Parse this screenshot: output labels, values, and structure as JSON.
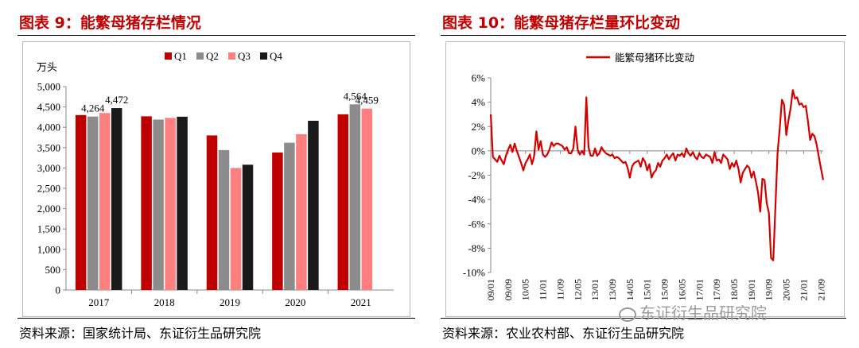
{
  "fig9": {
    "title": "图表 9：能繁母猪存栏情况",
    "source": "资料来源：国家统计局、东证衍生品研究院"
  },
  "fig10": {
    "title": "图表 10：能繁母猪存栏量环比变动",
    "source": "资料来源：农业农村部、东证衍生品研究院"
  },
  "watermark": "东证衍生品研究院",
  "chart_data": [
    {
      "type": "bar",
      "ylabel": "万头",
      "ylim": [
        0,
        5000
      ],
      "yticks": [
        0,
        500,
        1000,
        1500,
        2000,
        2500,
        3000,
        3500,
        4000,
        4500,
        5000
      ],
      "ytick_labels": [
        "0",
        "500",
        "1,000",
        "1,500",
        "2,000",
        "2,500",
        "3,000",
        "3,500",
        "4,000",
        "4,500",
        "5,000"
      ],
      "categories": [
        "2017",
        "2018",
        "2019",
        "2020",
        "2021"
      ],
      "legend_position": "top",
      "series": [
        {
          "name": "Q1",
          "color": "#c00000",
          "values": [
            4300,
            4270,
            3800,
            3380,
            4320
          ]
        },
        {
          "name": "Q2",
          "color": "#8c8c8c",
          "values": [
            4264,
            4190,
            3440,
            3620,
            4564
          ]
        },
        {
          "name": "Q3",
          "color": "#ff7f7f",
          "values": [
            4350,
            4230,
            3000,
            3830,
            4459
          ]
        },
        {
          "name": "Q4",
          "color": "#1a1a1a",
          "values": [
            4472,
            4260,
            3080,
            4160,
            null
          ]
        }
      ],
      "data_labels": [
        {
          "series": 1,
          "category": 0,
          "text": "4,264"
        },
        {
          "series": 3,
          "category": 0,
          "text": "4,472"
        },
        {
          "series": 1,
          "category": 4,
          "text": "4,564"
        },
        {
          "series": 2,
          "category": 4,
          "text": "4,459"
        }
      ],
      "grid": false
    },
    {
      "type": "line",
      "series": [
        {
          "name": "能繁母猪环比变动",
          "color": "#d40000"
        }
      ],
      "legend_position": "top",
      "ylim": [
        -10,
        6
      ],
      "yticks": [
        -10,
        -8,
        -6,
        -4,
        -2,
        0,
        2,
        4,
        6
      ],
      "ytick_labels": [
        "-10%",
        "-8%",
        "-6%",
        "-4%",
        "-2%",
        "0%",
        "2%",
        "4%",
        "6%"
      ],
      "xtick_labels": [
        "09/01",
        "09/09",
        "10/05",
        "11/01",
        "11/09",
        "12/05",
        "13/01",
        "13/09",
        "14/05",
        "15/01",
        "15/09",
        "16/05",
        "17/01",
        "17/09",
        "18/05",
        "19/01",
        "19/09",
        "20/05",
        "21/01",
        "21/09"
      ],
      "x_start": "2009-01",
      "x_end": "2021-10",
      "values": [
        3.0,
        -0.5,
        -0.7,
        -0.9,
        -0.4,
        -0.8,
        -1.1,
        -0.4,
        0.1,
        0.5,
        -0.1,
        0.6,
        0.0,
        -0.5,
        -1.0,
        -1.6,
        -1.0,
        -0.7,
        -0.3,
        -1.1,
        -0.4,
        1.6,
        0.1,
        0.8,
        -0.3,
        -0.5,
        -0.3,
        0.1,
        0.7,
        0.4,
        0.6,
        0.6,
        0.5,
        0.4,
        0.1,
        0.3,
        -0.2,
        -0.2,
        0.2,
        2.0,
        0.1,
        -0.3,
        0.0,
        -0.3,
        4.4,
        0.3,
        -0.4,
        -0.4,
        0.2,
        -0.4,
        -0.2,
        0.3,
        0.0,
        -0.2,
        -0.3,
        -0.4,
        -0.3,
        -0.6,
        -0.5,
        -0.6,
        -0.8,
        -1.0,
        -0.9,
        -1.4,
        -2.2,
        -1.3,
        -1.0,
        -0.9,
        -0.8,
        -1.3,
        -0.6,
        -0.9,
        -1.6,
        -1.1,
        -2.2,
        -1.8,
        -1.6,
        -1.0,
        -1.3,
        -0.8,
        -0.6,
        -0.3,
        -0.7,
        -0.4,
        -0.2,
        -0.8,
        -0.3,
        -0.4,
        -0.2,
        -0.5,
        0.2,
        -0.2,
        -0.4,
        -0.1,
        -0.5,
        -0.7,
        -0.2,
        -0.5,
        -0.6,
        -0.3,
        -0.4,
        -0.5,
        -1.0,
        -0.1,
        -0.8,
        -0.7,
        -1.0,
        -0.3,
        -0.5,
        -0.7,
        -1.5,
        -1.0,
        -1.3,
        -0.8,
        -1.5,
        -2.6,
        -1.8,
        -1.5,
        -1.2,
        -1.4,
        -2.2,
        -1.7,
        -2.5,
        -3.4,
        -5.0,
        -2.3,
        -2.4,
        -4.3,
        -5.1,
        -8.8,
        -9.0,
        -4.6,
        -0.2,
        1.9,
        4.2,
        3.8,
        1.3,
        2.5,
        3.5,
        5.0,
        4.3,
        4.4,
        3.8,
        3.9,
        3.6,
        3.7,
        2.4,
        0.9,
        1.4,
        1.2,
        0.5,
        -0.5,
        -1.5,
        -2.4
      ]
    }
  ]
}
